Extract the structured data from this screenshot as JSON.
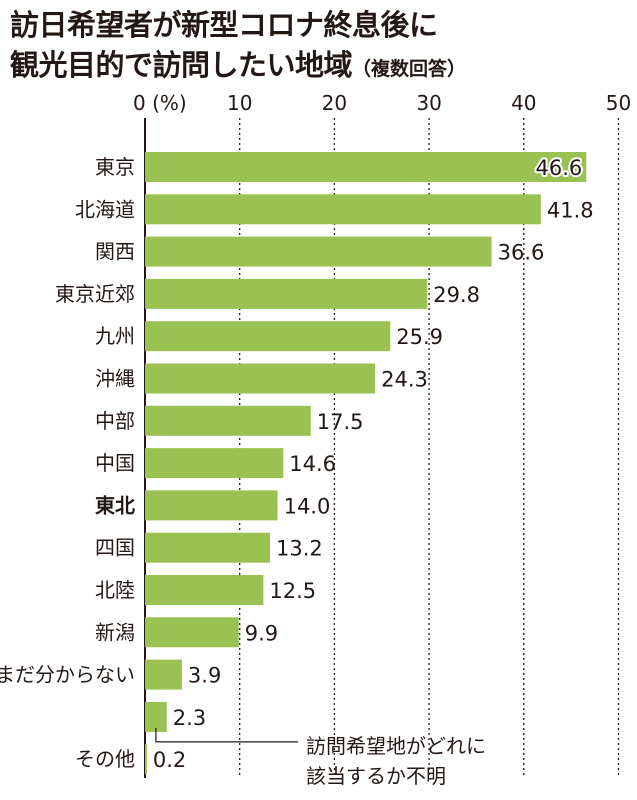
{
  "title": {
    "line1": "訪日希望者が新型コロナ終息後に",
    "line2": "観光目的で訪問したい地域",
    "note": "（複数回答）"
  },
  "chart_data": {
    "type": "bar",
    "orientation": "horizontal",
    "x_ticks": [
      "0 (%)",
      "10",
      "20",
      "30",
      "40",
      "50"
    ],
    "xlim": [
      0,
      50
    ],
    "grid": true,
    "bar_color": "#99c252",
    "highlight_category": "東北",
    "categories": [
      "東京",
      "北海道",
      "関西",
      "東京近郊",
      "九州",
      "沖縄",
      "中部",
      "中国",
      "東北",
      "四国",
      "北陸",
      "新潟",
      "まだ分からない",
      "",
      "その他"
    ],
    "values": [
      46.6,
      41.8,
      36.6,
      29.8,
      25.9,
      24.3,
      17.5,
      14.6,
      14.0,
      13.2,
      12.5,
      9.9,
      3.9,
      2.3,
      0.2
    ],
    "value_labels": [
      "46.6",
      "41.8",
      "36.6",
      "29.8",
      "25.9",
      "24.3",
      "17.5",
      "14.6",
      "14.0",
      "13.2",
      "12.5",
      "9.9",
      "3.9",
      "2.3",
      "0.2"
    ],
    "annotation": {
      "category_index": 13,
      "line1": "訪問希望地がどれに",
      "line2": "該当するか不明"
    }
  }
}
